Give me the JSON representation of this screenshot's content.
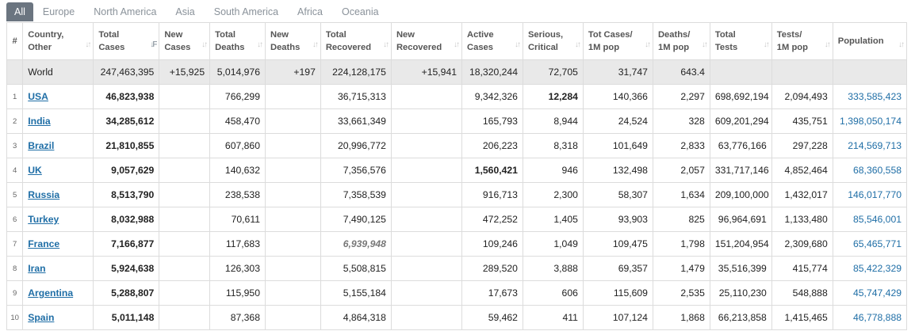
{
  "tabs": [
    "All",
    "Europe",
    "North America",
    "Asia",
    "South America",
    "Africa",
    "Oceania"
  ],
  "headers": [
    {
      "l1": "#",
      "l2": ""
    },
    {
      "l1": "Country,",
      "l2": "Other"
    },
    {
      "l1": "Total",
      "l2": "Cases"
    },
    {
      "l1": "New",
      "l2": "Cases"
    },
    {
      "l1": "Total",
      "l2": "Deaths"
    },
    {
      "l1": "New",
      "l2": "Deaths"
    },
    {
      "l1": "Total",
      "l2": "Recovered"
    },
    {
      "l1": "New",
      "l2": "Recovered"
    },
    {
      "l1": "Active",
      "l2": "Cases"
    },
    {
      "l1": "Serious,",
      "l2": "Critical"
    },
    {
      "l1": "Tot Cases/",
      "l2": "1M pop"
    },
    {
      "l1": "Deaths/",
      "l2": "1M pop"
    },
    {
      "l1": "Total",
      "l2": "Tests"
    },
    {
      "l1": "Tests/",
      "l2": "1M pop"
    },
    {
      "l1": "Population",
      "l2": ""
    }
  ],
  "world": {
    "country": "World",
    "total_cases": "247,463,395",
    "new_cases": "+15,925",
    "total_deaths": "5,014,976",
    "new_deaths": "+197",
    "total_recovered": "224,128,175",
    "new_recovered": "+15,941",
    "active_cases": "18,320,244",
    "serious": "72,705",
    "cases_per_1m": "31,747",
    "deaths_per_1m": "643.4",
    "total_tests": "",
    "tests_per_1m": "",
    "population": ""
  },
  "rows": [
    {
      "idx": "1",
      "country": "USA",
      "total_cases": "46,823,938",
      "new_cases": "",
      "total_deaths": "766,299",
      "new_deaths": "",
      "total_recovered": "36,715,313",
      "new_recovered": "",
      "active_cases": "9,342,326",
      "serious": "12,284",
      "cases_per_1m": "140,366",
      "deaths_per_1m": "2,297",
      "total_tests": "698,692,194",
      "tests_per_1m": "2,094,493",
      "population": "333,585,423"
    },
    {
      "idx": "2",
      "country": "India",
      "total_cases": "34,285,612",
      "new_cases": "",
      "total_deaths": "458,470",
      "new_deaths": "",
      "total_recovered": "33,661,349",
      "new_recovered": "",
      "active_cases": "165,793",
      "serious": "8,944",
      "cases_per_1m": "24,524",
      "deaths_per_1m": "328",
      "total_tests": "609,201,294",
      "tests_per_1m": "435,751",
      "population": "1,398,050,174"
    },
    {
      "idx": "3",
      "country": "Brazil",
      "total_cases": "21,810,855",
      "new_cases": "",
      "total_deaths": "607,860",
      "new_deaths": "",
      "total_recovered": "20,996,772",
      "new_recovered": "",
      "active_cases": "206,223",
      "serious": "8,318",
      "cases_per_1m": "101,649",
      "deaths_per_1m": "2,833",
      "total_tests": "63,776,166",
      "tests_per_1m": "297,228",
      "population": "214,569,713"
    },
    {
      "idx": "4",
      "country": "UK",
      "total_cases": "9,057,629",
      "new_cases": "",
      "total_deaths": "140,632",
      "new_deaths": "",
      "total_recovered": "7,356,576",
      "new_recovered": "",
      "active_cases": "1,560,421",
      "serious": "946",
      "cases_per_1m": "132,498",
      "deaths_per_1m": "2,057",
      "total_tests": "331,717,146",
      "tests_per_1m": "4,852,464",
      "population": "68,360,558"
    },
    {
      "idx": "5",
      "country": "Russia",
      "total_cases": "8,513,790",
      "new_cases": "",
      "total_deaths": "238,538",
      "new_deaths": "",
      "total_recovered": "7,358,539",
      "new_recovered": "",
      "active_cases": "916,713",
      "serious": "2,300",
      "cases_per_1m": "58,307",
      "deaths_per_1m": "1,634",
      "total_tests": "209,100,000",
      "tests_per_1m": "1,432,017",
      "population": "146,017,770"
    },
    {
      "idx": "6",
      "country": "Turkey",
      "total_cases": "8,032,988",
      "new_cases": "",
      "total_deaths": "70,611",
      "new_deaths": "",
      "total_recovered": "7,490,125",
      "new_recovered": "",
      "active_cases": "472,252",
      "serious": "1,405",
      "cases_per_1m": "93,903",
      "deaths_per_1m": "825",
      "total_tests": "96,964,691",
      "tests_per_1m": "1,133,480",
      "population": "85,546,001"
    },
    {
      "idx": "7",
      "country": "France",
      "total_cases": "7,166,877",
      "new_cases": "",
      "total_deaths": "117,683",
      "new_deaths": "",
      "total_recovered": "6,939,948",
      "new_recovered": "",
      "active_cases": "109,246",
      "serious": "1,049",
      "cases_per_1m": "109,475",
      "deaths_per_1m": "1,798",
      "total_tests": "151,204,954",
      "tests_per_1m": "2,309,680",
      "population": "65,465,771"
    },
    {
      "idx": "8",
      "country": "Iran",
      "total_cases": "5,924,638",
      "new_cases": "",
      "total_deaths": "126,303",
      "new_deaths": "",
      "total_recovered": "5,508,815",
      "new_recovered": "",
      "active_cases": "289,520",
      "serious": "3,888",
      "cases_per_1m": "69,357",
      "deaths_per_1m": "1,479",
      "total_tests": "35,516,399",
      "tests_per_1m": "415,774",
      "population": "85,422,329"
    },
    {
      "idx": "9",
      "country": "Argentina",
      "total_cases": "5,288,807",
      "new_cases": "",
      "total_deaths": "115,950",
      "new_deaths": "",
      "total_recovered": "5,155,184",
      "new_recovered": "",
      "active_cases": "17,673",
      "serious": "606",
      "cases_per_1m": "115,609",
      "deaths_per_1m": "2,535",
      "total_tests": "25,110,230",
      "tests_per_1m": "548,888",
      "population": "45,747,429"
    },
    {
      "idx": "10",
      "country": "Spain",
      "total_cases": "5,011,148",
      "new_cases": "",
      "total_deaths": "87,368",
      "new_deaths": "",
      "total_recovered": "4,864,318",
      "new_recovered": "",
      "active_cases": "59,462",
      "serious": "411",
      "cases_per_1m": "107,124",
      "deaths_per_1m": "1,868",
      "total_tests": "66,213,858",
      "tests_per_1m": "1,415,465",
      "population": "46,778,888"
    }
  ],
  "icons": {
    "sort": "sort-arrows-icon",
    "sort_active": "sort-desc-icon"
  },
  "colors": {
    "link": "#1f6ea6",
    "tab_active_bg": "#6b7580",
    "world_row_bg": "#e9e9e9"
  }
}
